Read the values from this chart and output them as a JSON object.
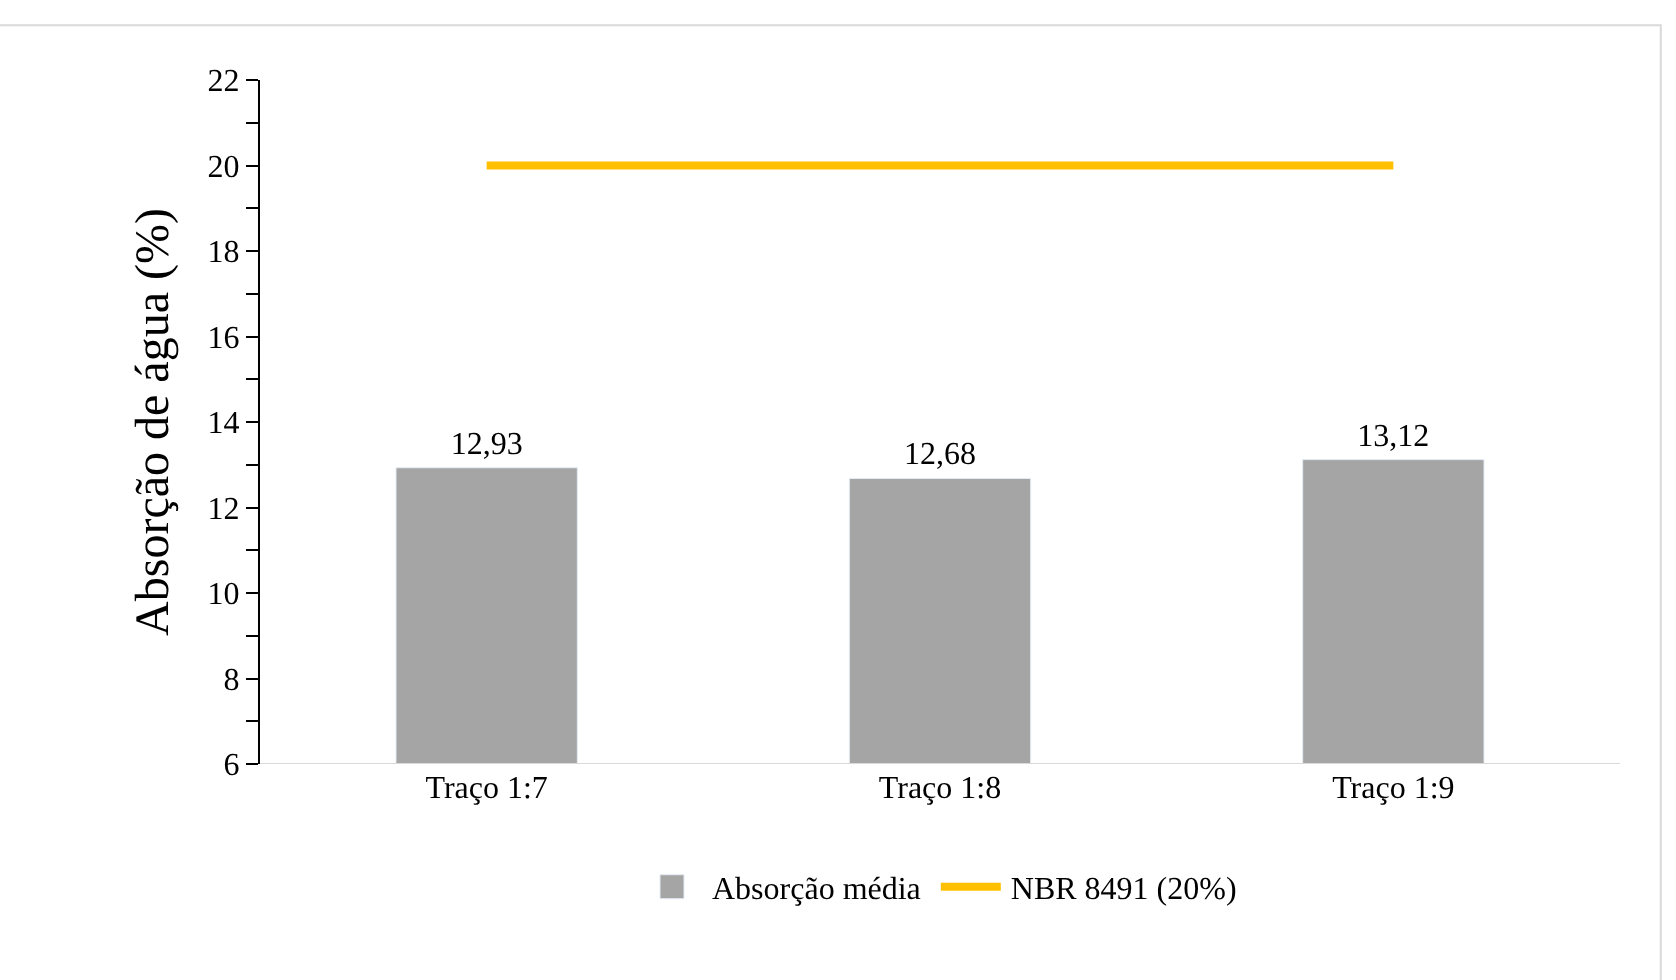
{
  "chart_data": {
    "type": "bar",
    "ylabel": "Absorção de água (%)",
    "categories": [
      "Traço 1:7",
      "Traço 1:8",
      "Traço 1:9"
    ],
    "series": [
      {
        "name": "Absorção média",
        "color": "#a5a5a5",
        "values": [
          12.93,
          12.68,
          13.12
        ],
        "value_labels": [
          "12,93",
          "12,68",
          "13,12"
        ]
      },
      {
        "name": "NBR 8491 (20%)",
        "type": "line",
        "color": "#ffc000",
        "values": [
          20,
          20,
          20
        ],
        "marker": "none"
      }
    ],
    "ylim": [
      6,
      22
    ],
    "yticks": [
      6,
      {
        "value": 7,
        "label": null
      },
      8,
      {
        "value": 9,
        "label": null
      },
      10,
      {
        "value": 11,
        "label": null
      },
      12,
      {
        "value": 13,
        "label": null
      },
      14,
      {
        "value": 15,
        "label": null
      },
      16,
      {
        "value": 17,
        "label": null
      },
      18,
      {
        "value": 19,
        "label": null
      },
      20,
      {
        "value": 21,
        "label": null
      },
      22
    ],
    "legend": "bottom"
  }
}
